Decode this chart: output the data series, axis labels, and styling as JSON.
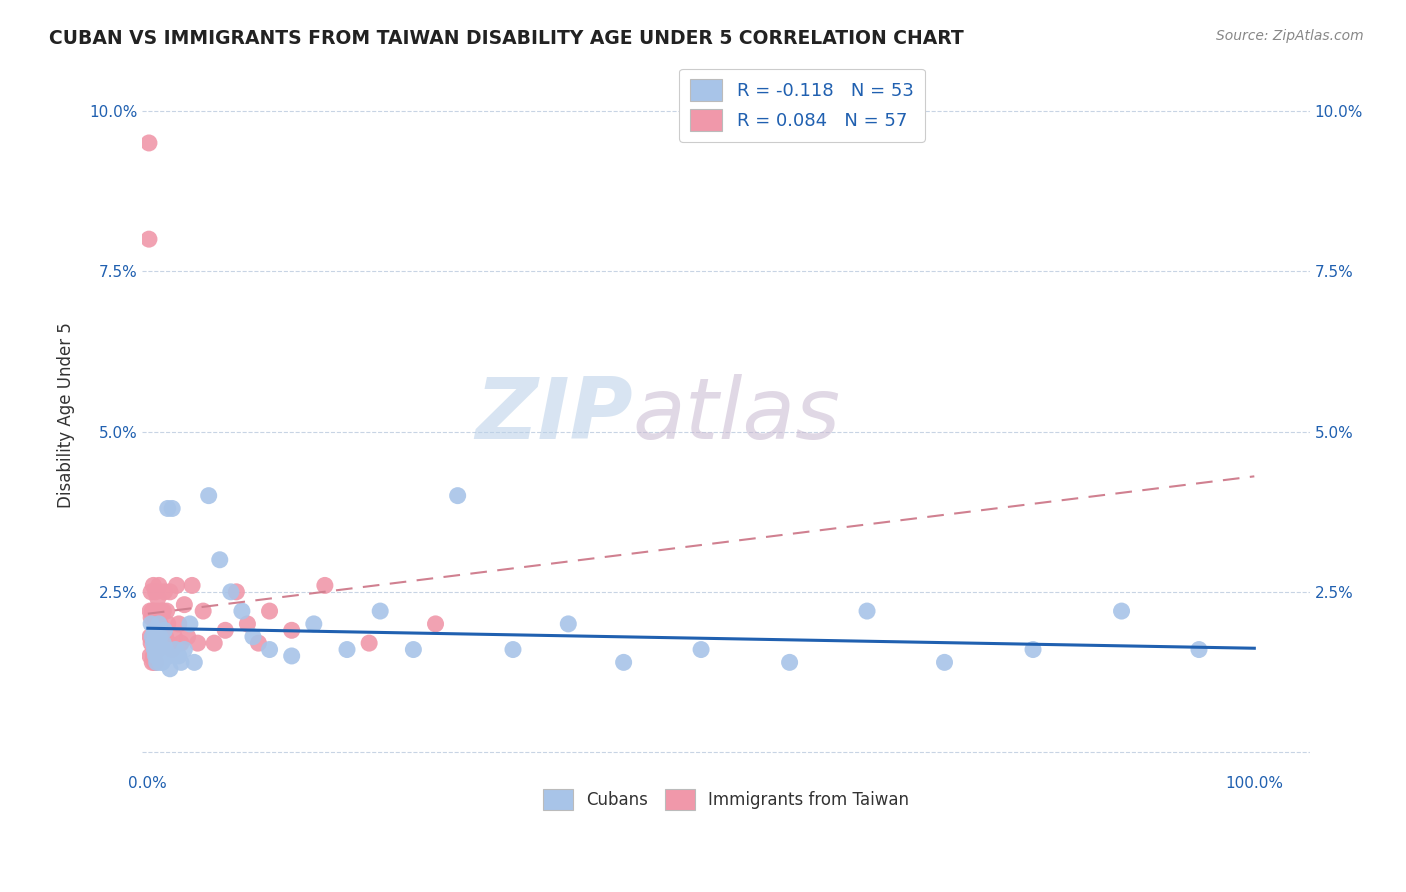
{
  "title": "CUBAN VS IMMIGRANTS FROM TAIWAN DISABILITY AGE UNDER 5 CORRELATION CHART",
  "source_text": "Source: ZipAtlas.com",
  "ylabel": "Disability Age Under 5",
  "xlim": [
    -0.005,
    1.05
  ],
  "ylim": [
    -0.003,
    0.108
  ],
  "xticks": [
    0.0,
    0.25,
    0.5,
    0.75,
    1.0
  ],
  "xtick_labels_show": [
    "0.0%",
    "",
    "",
    "",
    "100.0%"
  ],
  "yticks": [
    0.0,
    0.025,
    0.05,
    0.075,
    0.1
  ],
  "ytick_labels": [
    "",
    "2.5%",
    "5.0%",
    "7.5%",
    "10.0%"
  ],
  "r_cubans": -0.118,
  "n_cubans": 53,
  "r_taiwan": 0.084,
  "n_taiwan": 57,
  "cubans_color": "#a8c4e8",
  "taiwan_color": "#f098aa",
  "trendline_cubans_color": "#2060b0",
  "trendline_taiwan_color": "#d08090",
  "background_color": "#ffffff",
  "watermark_zip": "ZIP",
  "watermark_atlas": "atlas",
  "legend_label_cubans": "Cubans",
  "legend_label_taiwan": "Immigrants from Taiwan",
  "cubans_x": [
    0.003,
    0.004,
    0.005,
    0.006,
    0.006,
    0.007,
    0.007,
    0.008,
    0.009,
    0.009,
    0.01,
    0.01,
    0.011,
    0.011,
    0.012,
    0.012,
    0.013,
    0.014,
    0.015,
    0.016,
    0.017,
    0.018,
    0.019,
    0.02,
    0.022,
    0.025,
    0.028,
    0.03,
    0.033,
    0.038,
    0.042,
    0.055,
    0.065,
    0.075,
    0.085,
    0.095,
    0.11,
    0.13,
    0.15,
    0.18,
    0.21,
    0.24,
    0.28,
    0.33,
    0.38,
    0.43,
    0.5,
    0.58,
    0.65,
    0.72,
    0.8,
    0.88,
    0.95
  ],
  "cubans_y": [
    0.02,
    0.018,
    0.017,
    0.016,
    0.019,
    0.015,
    0.018,
    0.014,
    0.017,
    0.015,
    0.02,
    0.016,
    0.014,
    0.018,
    0.016,
    0.015,
    0.014,
    0.017,
    0.019,
    0.016,
    0.015,
    0.038,
    0.015,
    0.013,
    0.038,
    0.016,
    0.015,
    0.014,
    0.016,
    0.02,
    0.014,
    0.04,
    0.03,
    0.025,
    0.022,
    0.018,
    0.016,
    0.015,
    0.02,
    0.016,
    0.022,
    0.016,
    0.04,
    0.016,
    0.02,
    0.014,
    0.016,
    0.014,
    0.022,
    0.014,
    0.016,
    0.022,
    0.016
  ],
  "taiwan_x": [
    0.001,
    0.001,
    0.002,
    0.002,
    0.002,
    0.003,
    0.003,
    0.003,
    0.004,
    0.004,
    0.004,
    0.005,
    0.005,
    0.005,
    0.005,
    0.006,
    0.006,
    0.006,
    0.007,
    0.007,
    0.007,
    0.008,
    0.008,
    0.009,
    0.009,
    0.01,
    0.01,
    0.011,
    0.012,
    0.013,
    0.014,
    0.015,
    0.016,
    0.017,
    0.018,
    0.019,
    0.02,
    0.022,
    0.024,
    0.026,
    0.028,
    0.03,
    0.033,
    0.036,
    0.04,
    0.045,
    0.05,
    0.06,
    0.07,
    0.08,
    0.09,
    0.1,
    0.11,
    0.13,
    0.16,
    0.2,
    0.26
  ],
  "taiwan_y": [
    0.095,
    0.08,
    0.022,
    0.018,
    0.015,
    0.025,
    0.021,
    0.017,
    0.022,
    0.018,
    0.014,
    0.026,
    0.022,
    0.018,
    0.015,
    0.021,
    0.017,
    0.014,
    0.025,
    0.017,
    0.014,
    0.022,
    0.017,
    0.024,
    0.016,
    0.026,
    0.017,
    0.02,
    0.022,
    0.017,
    0.022,
    0.025,
    0.018,
    0.022,
    0.02,
    0.017,
    0.025,
    0.016,
    0.018,
    0.026,
    0.02,
    0.017,
    0.023,
    0.018,
    0.026,
    0.017,
    0.022,
    0.017,
    0.019,
    0.025,
    0.02,
    0.017,
    0.022,
    0.019,
    0.026,
    0.017,
    0.02
  ]
}
